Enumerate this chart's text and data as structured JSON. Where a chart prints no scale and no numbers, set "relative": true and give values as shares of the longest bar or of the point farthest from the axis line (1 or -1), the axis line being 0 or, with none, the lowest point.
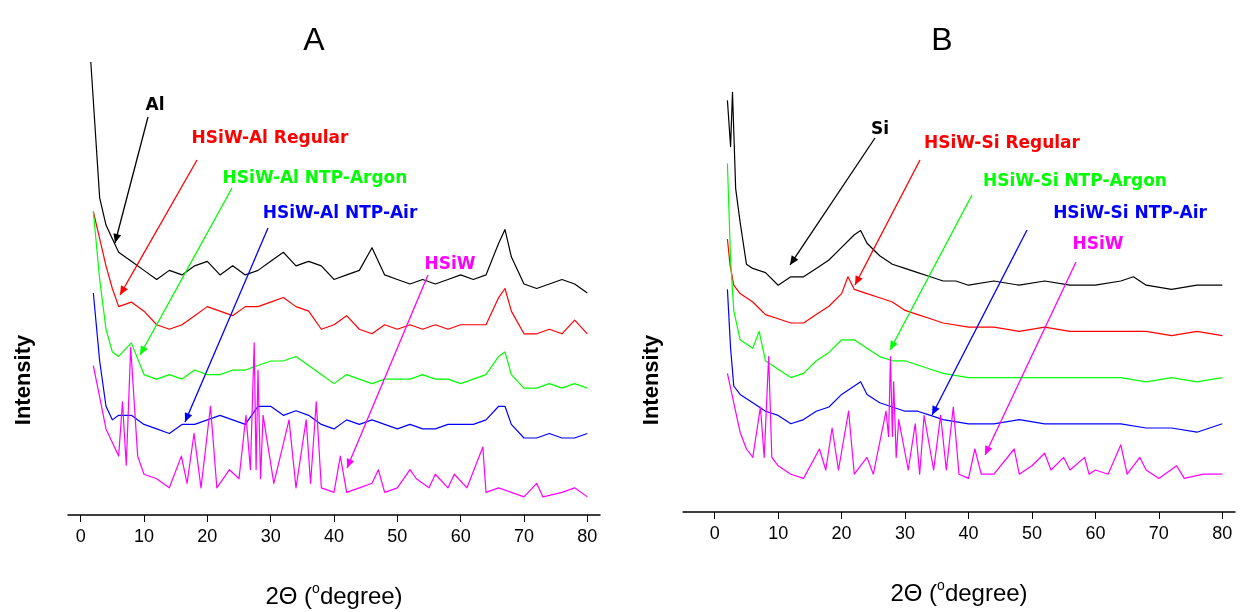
{
  "chart_data": [
    {
      "type": "line",
      "title": "A",
      "xlabel": "2Θ ($^{o}$degree)",
      "ylabel": "Intensity",
      "xlim": [
        -2,
        82
      ],
      "xticks": [
        0,
        10,
        20,
        30,
        40,
        50,
        60,
        70,
        80
      ],
      "relative": true,
      "tick_labels": "x",
      "series": [
        {
          "name": "Al",
          "color": "#000000",
          "x": [
            1.6,
            3,
            4,
            5,
            6,
            8,
            10,
            12,
            14,
            16,
            18,
            20,
            22,
            24,
            26,
            28,
            30,
            32,
            34,
            36,
            38,
            40,
            42,
            44,
            46,
            48,
            50,
            52,
            54,
            56,
            58,
            60,
            62,
            64,
            66,
            67,
            68,
            70,
            72,
            74,
            76,
            78,
            80
          ],
          "values": [
            1.0,
            0.7,
            0.64,
            0.61,
            0.58,
            0.56,
            0.54,
            0.52,
            0.54,
            0.53,
            0.55,
            0.56,
            0.53,
            0.55,
            0.53,
            0.54,
            0.56,
            0.58,
            0.55,
            0.56,
            0.55,
            0.52,
            0.53,
            0.54,
            0.59,
            0.53,
            0.52,
            0.51,
            0.52,
            0.51,
            0.52,
            0.53,
            0.52,
            0.53,
            0.6,
            0.63,
            0.57,
            0.51,
            0.5,
            0.51,
            0.52,
            0.51,
            0.49
          ]
        },
        {
          "name": "HSiW-Al Regular",
          "color": "#ff0000",
          "x": [
            2,
            3,
            4,
            5,
            6,
            8,
            10,
            12,
            14,
            16,
            18,
            20,
            22,
            24,
            26,
            28,
            30,
            32,
            34,
            36,
            38,
            40,
            42,
            44,
            46,
            48,
            50,
            52,
            54,
            56,
            58,
            60,
            62,
            64,
            66,
            67,
            68,
            70,
            72,
            74,
            76,
            78,
            80
          ],
          "values": [
            0.67,
            0.61,
            0.55,
            0.5,
            0.46,
            0.47,
            0.45,
            0.42,
            0.41,
            0.42,
            0.44,
            0.46,
            0.45,
            0.44,
            0.46,
            0.46,
            0.47,
            0.48,
            0.46,
            0.45,
            0.41,
            0.42,
            0.44,
            0.41,
            0.4,
            0.42,
            0.41,
            0.42,
            0.41,
            0.42,
            0.41,
            0.42,
            0.42,
            0.42,
            0.48,
            0.5,
            0.45,
            0.4,
            0.4,
            0.41,
            0.4,
            0.43,
            0.4
          ]
        },
        {
          "name": "HSiW-Al NTP-Argon",
          "color": "#00ff00",
          "x": [
            2,
            3,
            4,
            5,
            6,
            8,
            10,
            12,
            14,
            16,
            18,
            20,
            22,
            24,
            26,
            28,
            30,
            32,
            34,
            36,
            38,
            40,
            42,
            44,
            46,
            48,
            50,
            52,
            54,
            56,
            58,
            60,
            62,
            64,
            66,
            67,
            68,
            70,
            72,
            74,
            76,
            78,
            80
          ],
          "values": [
            0.67,
            0.52,
            0.41,
            0.36,
            0.35,
            0.38,
            0.31,
            0.3,
            0.31,
            0.3,
            0.32,
            0.31,
            0.31,
            0.32,
            0.32,
            0.33,
            0.34,
            0.34,
            0.35,
            0.33,
            0.31,
            0.29,
            0.31,
            0.3,
            0.29,
            0.3,
            0.3,
            0.3,
            0.31,
            0.3,
            0.3,
            0.29,
            0.3,
            0.31,
            0.35,
            0.36,
            0.31,
            0.28,
            0.28,
            0.29,
            0.28,
            0.29,
            0.28
          ]
        },
        {
          "name": "HSiW-Al NTP-Air",
          "color": "#0000ff",
          "x": [
            2,
            3,
            4,
            5,
            6,
            8,
            10,
            12,
            14,
            16,
            18,
            20,
            22,
            24,
            26,
            28,
            30,
            32,
            34,
            36,
            38,
            40,
            42,
            44,
            46,
            48,
            50,
            52,
            54,
            56,
            58,
            60,
            62,
            64,
            66,
            67,
            68,
            70,
            72,
            74,
            76,
            78,
            80
          ],
          "values": [
            0.49,
            0.34,
            0.24,
            0.21,
            0.22,
            0.22,
            0.2,
            0.19,
            0.18,
            0.2,
            0.2,
            0.21,
            0.22,
            0.21,
            0.2,
            0.24,
            0.24,
            0.22,
            0.23,
            0.22,
            0.2,
            0.19,
            0.21,
            0.2,
            0.21,
            0.2,
            0.19,
            0.2,
            0.19,
            0.19,
            0.2,
            0.2,
            0.2,
            0.21,
            0.24,
            0.24,
            0.2,
            0.17,
            0.17,
            0.18,
            0.17,
            0.17,
            0.18
          ]
        },
        {
          "name": "HSiW",
          "color": "#ff00ff",
          "x": [
            2,
            3,
            4,
            6,
            6.6,
            7.2,
            7.9,
            9,
            10,
            12,
            14,
            15.9,
            16.8,
            17.9,
            19,
            20.5,
            21.5,
            23.5,
            25,
            26.1,
            26.8,
            27.4,
            27.7,
            28.0,
            28.4,
            28.8,
            30.5,
            32.9,
            34,
            35.6,
            36.3,
            37.2,
            38,
            40,
            41,
            42,
            44,
            46,
            47,
            48,
            50,
            52,
            53,
            55,
            56,
            58,
            59,
            61,
            63.5,
            64,
            66,
            68,
            70,
            72,
            73,
            76,
            78,
            80
          ],
          "values": [
            0.33,
            0.26,
            0.19,
            0.13,
            0.25,
            0.11,
            0.37,
            0.13,
            0.09,
            0.08,
            0.06,
            0.13,
            0.07,
            0.18,
            0.06,
            0.24,
            0.06,
            0.1,
            0.08,
            0.22,
            0.1,
            0.38,
            0.1,
            0.32,
            0.08,
            0.22,
            0.07,
            0.21,
            0.06,
            0.21,
            0.07,
            0.25,
            0.06,
            0.05,
            0.13,
            0.05,
            0.06,
            0.07,
            0.1,
            0.05,
            0.06,
            0.1,
            0.08,
            0.06,
            0.09,
            0.06,
            0.09,
            0.06,
            0.15,
            0.05,
            0.06,
            0.05,
            0.04,
            0.07,
            0.04,
            0.05,
            0.06,
            0.04
          ]
        }
      ]
    },
    {
      "type": "line",
      "title": "B",
      "xlabel": "2Θ ($^{o}$degree)",
      "ylabel": "Intensity",
      "xlim": [
        -5,
        82
      ],
      "xticks": [
        0,
        10,
        20,
        30,
        40,
        50,
        60,
        70,
        80
      ],
      "relative": true,
      "tick_labels": "x",
      "series": [
        {
          "name": "Si",
          "color": "#000000",
          "x": [
            2,
            2.5,
            2.8,
            3.3,
            4,
            5,
            6,
            8,
            10,
            12,
            14,
            16,
            18,
            20,
            22,
            23,
            24,
            26,
            28,
            30,
            32,
            34,
            36,
            38,
            40,
            44,
            48,
            52,
            56,
            60,
            64,
            66,
            68,
            72,
            76,
            80
          ],
          "values": [
            0.98,
            0.87,
            1.0,
            0.77,
            0.69,
            0.59,
            0.58,
            0.57,
            0.54,
            0.56,
            0.56,
            0.58,
            0.6,
            0.63,
            0.66,
            0.67,
            0.64,
            0.61,
            0.59,
            0.58,
            0.57,
            0.56,
            0.55,
            0.55,
            0.54,
            0.55,
            0.54,
            0.55,
            0.54,
            0.54,
            0.55,
            0.56,
            0.54,
            0.53,
            0.54,
            0.54
          ]
        },
        {
          "name": "HSiW-Si Regular",
          "color": "#ff0000",
          "x": [
            2,
            2.4,
            3,
            4,
            6,
            8,
            10,
            12,
            14,
            16,
            18,
            20,
            21,
            22,
            24,
            26,
            28,
            30,
            32,
            34,
            36,
            40,
            44,
            48,
            52,
            56,
            60,
            64,
            68,
            72,
            76,
            80
          ],
          "values": [
            0.65,
            0.59,
            0.54,
            0.52,
            0.5,
            0.47,
            0.46,
            0.45,
            0.45,
            0.47,
            0.49,
            0.52,
            0.56,
            0.53,
            0.52,
            0.51,
            0.5,
            0.48,
            0.47,
            0.46,
            0.45,
            0.44,
            0.44,
            0.43,
            0.44,
            0.43,
            0.43,
            0.43,
            0.43,
            0.42,
            0.43,
            0.42
          ]
        },
        {
          "name": "HSiW-Si NTP-Argon",
          "color": "#00ff00",
          "x": [
            2,
            2.5,
            3,
            4,
            6,
            7,
            8,
            10,
            12,
            14,
            16,
            18,
            20,
            22,
            24,
            26,
            28,
            30,
            32,
            34,
            36,
            40,
            44,
            48,
            52,
            56,
            60,
            64,
            68,
            72,
            76,
            80
          ],
          "values": [
            0.83,
            0.6,
            0.48,
            0.41,
            0.39,
            0.43,
            0.36,
            0.34,
            0.32,
            0.33,
            0.36,
            0.38,
            0.41,
            0.41,
            0.39,
            0.37,
            0.36,
            0.36,
            0.35,
            0.34,
            0.33,
            0.32,
            0.32,
            0.32,
            0.32,
            0.32,
            0.32,
            0.32,
            0.31,
            0.32,
            0.31,
            0.32
          ]
        },
        {
          "name": "HSiW-Si NTP-Air",
          "color": "#0000ff",
          "x": [
            2,
            2.5,
            3,
            4,
            6,
            8,
            10,
            12,
            14,
            16,
            18,
            20,
            22,
            23,
            24,
            26,
            28,
            30,
            32,
            34,
            36,
            40,
            44,
            48,
            52,
            56,
            60,
            64,
            68,
            72,
            76,
            80
          ],
          "values": [
            0.53,
            0.39,
            0.3,
            0.28,
            0.26,
            0.24,
            0.23,
            0.21,
            0.22,
            0.24,
            0.25,
            0.28,
            0.3,
            0.31,
            0.28,
            0.26,
            0.25,
            0.24,
            0.24,
            0.23,
            0.22,
            0.21,
            0.21,
            0.22,
            0.21,
            0.21,
            0.21,
            0.21,
            0.2,
            0.2,
            0.19,
            0.21
          ]
        },
        {
          "name": "HSiW",
          "color": "#ff00ff",
          "x": [
            2,
            3,
            4,
            5,
            6,
            7.2,
            7.8,
            8.5,
            9,
            10,
            12,
            14,
            16.5,
            17.5,
            18.5,
            19.5,
            21.1,
            22,
            24,
            25,
            27,
            27.4,
            27.7,
            28,
            28.2,
            28.6,
            29,
            30.5,
            31.6,
            32.3,
            33,
            34.5,
            35.6,
            36.5,
            37.6,
            38.5,
            40,
            41,
            42,
            44,
            47.2,
            48,
            50,
            52,
            53,
            55,
            56,
            58.3,
            59,
            60,
            62,
            64,
            65,
            67,
            68,
            70,
            72.8,
            74,
            77,
            80
          ],
          "values": [
            0.33,
            0.26,
            0.19,
            0.15,
            0.13,
            0.25,
            0.13,
            0.37,
            0.13,
            0.11,
            0.09,
            0.08,
            0.15,
            0.1,
            0.2,
            0.1,
            0.24,
            0.09,
            0.13,
            0.09,
            0.24,
            0.18,
            0.37,
            0.18,
            0.31,
            0.13,
            0.22,
            0.1,
            0.21,
            0.09,
            0.23,
            0.1,
            0.23,
            0.1,
            0.25,
            0.09,
            0.08,
            0.15,
            0.09,
            0.09,
            0.15,
            0.09,
            0.11,
            0.14,
            0.1,
            0.13,
            0.1,
            0.13,
            0.09,
            0.1,
            0.09,
            0.16,
            0.09,
            0.13,
            0.1,
            0.08,
            0.11,
            0.08,
            0.09,
            0.09
          ]
        }
      ]
    }
  ]
}
